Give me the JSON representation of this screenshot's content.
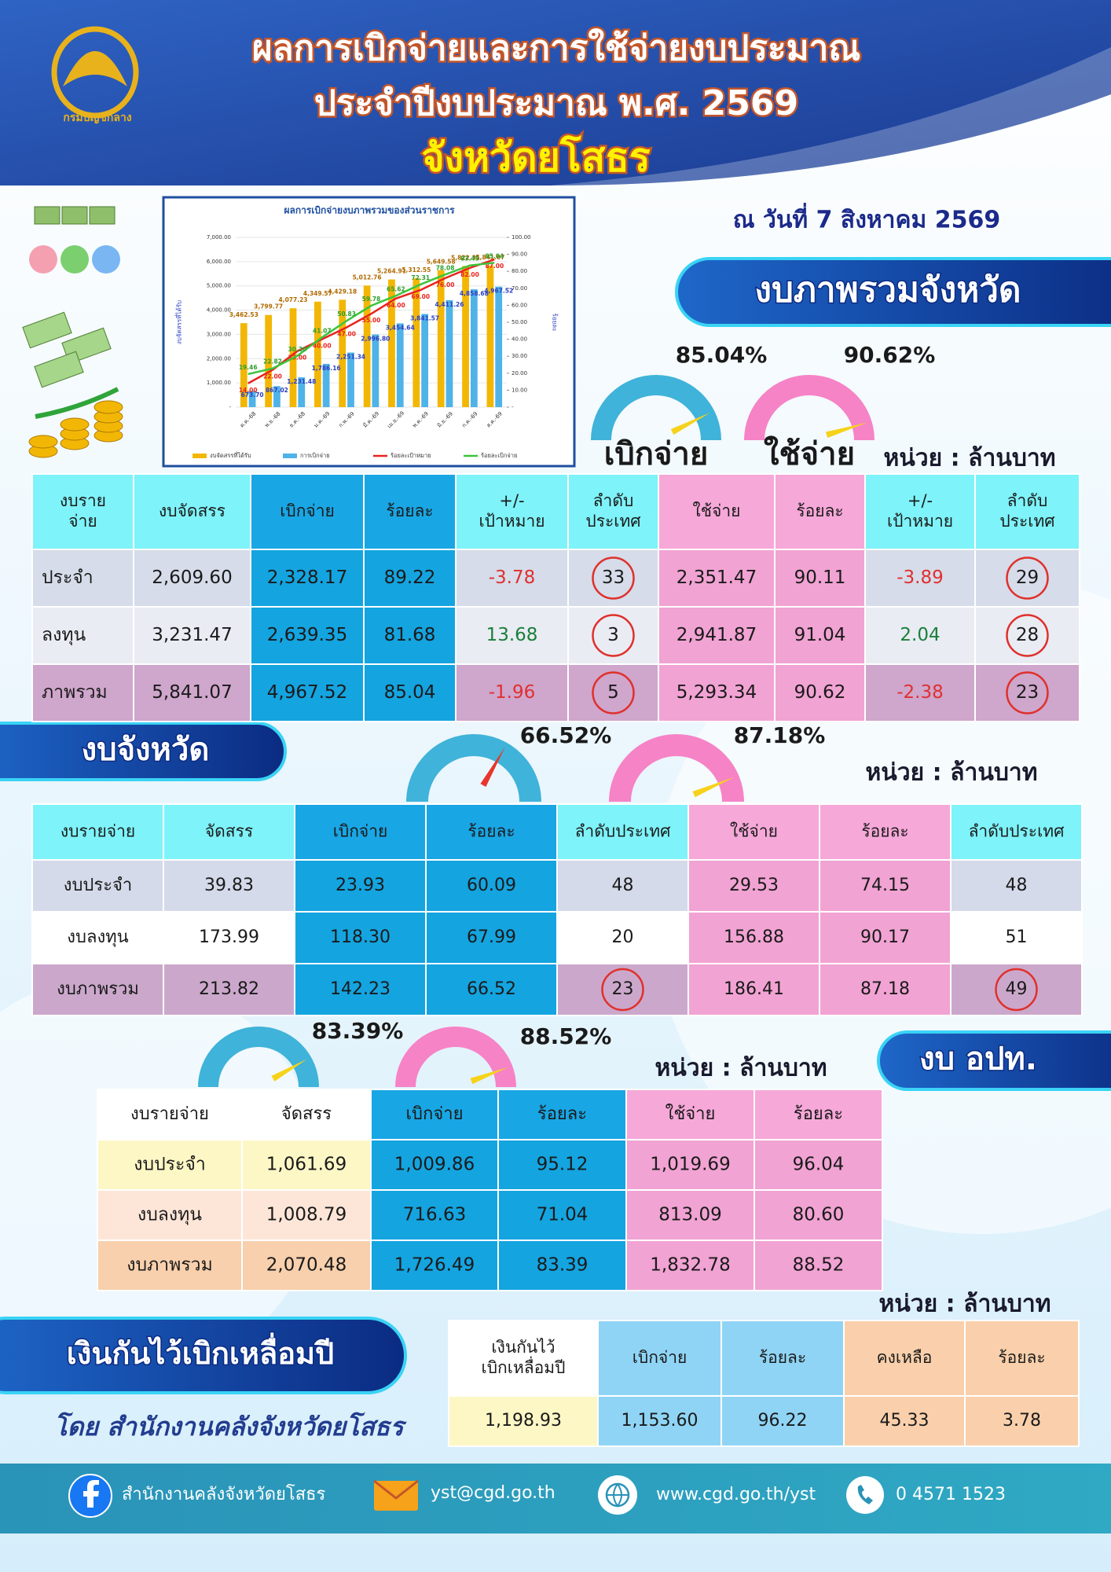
{
  "header": {
    "logo_text": "กรมบัญชีกลาง",
    "title_lines": [
      "ผลการเบิกจ่ายและการใช้จ่ายงบประมาณ",
      "ประจำปีงบประมาณ พ.ศ. 2569",
      "จังหวัดยโสธร"
    ],
    "date": "ณ วันที่ 7 สิงหาคม 2569"
  },
  "chart_data": {
    "type": "bar",
    "title": "ผลการเบิกจ่ายงบภาพรวมของส่วนราชการ",
    "y_label": "งบจัดสรรที่ได้รับ",
    "y2_label": "ร้อยละ",
    "categories": [
      "ต.ค.-68",
      "พ.ย.-68",
      "ธ.ค.-68",
      "ม.ค.-69",
      "ก.พ.-69",
      "มี.ค.-69",
      "เม.ย.-69",
      "พ.ค.-69",
      "มิ.ย.-69",
      "ก.ค.-69",
      "ส.ค.-69"
    ],
    "ylim": [
      0,
      7000
    ],
    "yticks": [
      {
        "value": 0,
        "label": "-"
      },
      {
        "value": 1000,
        "label": "1,000.00"
      },
      {
        "value": 2000,
        "label": "2,000.00"
      },
      {
        "value": 3000,
        "label": "3,000.00"
      },
      {
        "value": 4000,
        "label": "4,000.00"
      },
      {
        "value": 5000,
        "label": "5,000.00"
      },
      {
        "value": 6000,
        "label": "6,000.00"
      },
      {
        "value": 7000,
        "label": "7,000.00"
      }
    ],
    "y2lim": [
      0,
      100
    ],
    "y2ticks": [
      {
        "value": 0,
        "label": "-"
      },
      {
        "value": 10,
        "label": "10.00"
      },
      {
        "value": 20,
        "label": "20.00"
      },
      {
        "value": 30,
        "label": "30.00"
      },
      {
        "value": 40,
        "label": "40.00"
      },
      {
        "value": 50,
        "label": "50.00"
      },
      {
        "value": 60,
        "label": "60.00"
      },
      {
        "value": 70,
        "label": "70.00"
      },
      {
        "value": 80,
        "label": "80.00"
      },
      {
        "value": 90,
        "label": "90.00"
      },
      {
        "value": 100,
        "label": "100.00"
      }
    ],
    "series": [
      {
        "name": "งบจัดสรรที่ได้รับ",
        "type": "bar",
        "color": "#f2b705",
        "values": [
          3462.53,
          3799.77,
          4077.23,
          4349.57,
          4429.18,
          5012.76,
          5264.91,
          5312.55,
          5649.58,
          5822.31,
          5841.07
        ],
        "value_labels": [
          "3,462.53",
          "3,799.77",
          "4,077.23",
          "4,349.57",
          "4,429.18",
          "5,012.76",
          "5,264.91",
          "5,312.55",
          "5,649.58",
          "5,822.31",
          "5,841.07"
        ]
      },
      {
        "name": "การเบิกจ่าย",
        "type": "bar",
        "color": "#4fb3e8",
        "values": [
          673.7,
          867.02,
          1231.48,
          1786.16,
          2251.34,
          2996.8,
          3454.64,
          3841.57,
          4411.26,
          4858.68,
          4967.52
        ],
        "value_labels": [
          "673.70",
          "867.02",
          "1,231.48",
          "1,786.16",
          "2,251.34",
          "2,996.80",
          "3,454.64",
          "3,841.57",
          "4,411.26",
          "4,858.68",
          "4,967.52"
        ]
      },
      {
        "name": "ร้อยละเป้าหมาย",
        "type": "line",
        "axis": "y2",
        "color": "#e8231f",
        "values": [
          14.0,
          22.0,
          33.0,
          40.0,
          47.0,
          55.0,
          64.0,
          69.0,
          76.0,
          82.0,
          87.0
        ],
        "value_labels": [
          "14.00",
          "22.00",
          "33.00",
          "40.00",
          "47.00",
          "55.00",
          "64.00",
          "69.00",
          "76.00",
          "82.00",
          "87.00"
        ]
      },
      {
        "name": "ร้อยละเบิกจ่าย",
        "type": "line",
        "axis": "y2",
        "color": "#3cc43c",
        "values": [
          19.46,
          22.82,
          30.2,
          41.07,
          50.83,
          59.78,
          65.62,
          72.31,
          78.08,
          83.45,
          85.04
        ],
        "value_labels": [
          "19.46",
          "22.82",
          "30.20",
          "41.07",
          "50.83",
          "59.78",
          "65.62",
          "72.31",
          "78.08",
          "83.45",
          "85.04"
        ]
      }
    ]
  },
  "sections": [
    {
      "title": "งบภาพรวมจังหวัด",
      "unit": "หน่วย : ล้านบาท",
      "gauges": [
        {
          "value": 85.04,
          "value_label": "85.04%",
          "caption": "เบิกจ่าย"
        },
        {
          "value": 90.62,
          "value_label": "90.62%",
          "caption": "ใช้จ่าย"
        }
      ],
      "table": {
        "headers": [
          "งบราย\nจ่าย",
          "งบจัดสรร",
          "เบิกจ่าย",
          "ร้อยละ",
          "+/-\nเป้าหมาย",
          "ลำดับ\nประเทศ",
          "ใช้จ่าย",
          "ร้อยละ",
          "+/-\nเป้าหมาย",
          "ลำดับ\nประเทศ"
        ],
        "rows": [
          [
            "ประจำ",
            "2,609.60",
            "2,328.17",
            "89.22",
            "-3.78",
            "33",
            "2,351.47",
            "90.11",
            "-3.89",
            "29"
          ],
          [
            "ลงทุน",
            "3,231.47",
            "2,639.35",
            "81.68",
            "13.68",
            "3",
            "2,941.87",
            "91.04",
            "2.04",
            "28"
          ],
          [
            "ภาพรวม",
            "5,841.07",
            "4,967.52",
            "85.04",
            "-1.96",
            "5",
            "5,293.34",
            "90.62",
            "-2.38",
            "23"
          ]
        ],
        "circled": [
          [
            0,
            5
          ],
          [
            0,
            9
          ],
          [
            1,
            5
          ],
          [
            1,
            9
          ],
          [
            2,
            5
          ],
          [
            2,
            9
          ]
        ]
      }
    },
    {
      "title": "งบจังหวัด",
      "unit": "หน่วย : ล้านบาท",
      "gauges": [
        {
          "value": 66.52,
          "value_label": "66.52%"
        },
        {
          "value": 87.18,
          "value_label": "87.18%"
        }
      ],
      "table": {
        "headers": [
          "งบรายจ่าย",
          "จัดสรร",
          "เบิกจ่าย",
          "ร้อยละ",
          "ลำดับประเทศ",
          "ใช้จ่าย",
          "ร้อยละ",
          "ลำดับประเทศ"
        ],
        "rows": [
          [
            "งบประจำ",
            "39.83",
            "23.93",
            "60.09",
            "48",
            "29.53",
            "74.15",
            "48"
          ],
          [
            "งบลงทุน",
            "173.99",
            "118.30",
            "67.99",
            "20",
            "156.88",
            "90.17",
            "51"
          ],
          [
            "งบภาพรวม",
            "213.82",
            "142.23",
            "66.52",
            "23",
            "186.41",
            "87.18",
            "49"
          ]
        ],
        "circled": [
          [
            2,
            4
          ],
          [
            2,
            7
          ]
        ]
      }
    },
    {
      "title": "งบ อปท.",
      "unit": "หน่วย : ล้านบาท",
      "gauges": [
        {
          "value": 83.39,
          "value_label": "83.39%"
        },
        {
          "value": 88.52,
          "value_label": "88.52%"
        }
      ],
      "table": {
        "headers": [
          "งบรายจ่าย",
          "จัดสรร",
          "เบิกจ่าย",
          "ร้อยละ",
          "ใช้จ่าย",
          "ร้อยละ"
        ],
        "rows": [
          [
            "งบประจำ",
            "1,061.69",
            "1,009.86",
            "95.12",
            "1,019.69",
            "96.04"
          ],
          [
            "งบลงทุน",
            "1,008.79",
            "716.63",
            "71.04",
            "813.09",
            "80.60"
          ],
          [
            "งบภาพรวม",
            "2,070.48",
            "1,726.49",
            "83.39",
            "1,832.78",
            "88.52"
          ]
        ]
      }
    },
    {
      "title": "เงินกันไว้เบิกเหลื่อมปี",
      "unit": "หน่วย : ล้านบาท",
      "note": "โดย สำนักงานคลังจังหวัดยโสธร",
      "table": {
        "headers": [
          "เงินกันไว้\nเบิกเหลื่อมปี",
          "เบิกจ่าย",
          "ร้อยละ",
          "คงเหลือ",
          "ร้อยละ"
        ],
        "rows": [
          [
            "1,198.93",
            "1,153.60",
            "96.22",
            "45.33",
            "3.78"
          ]
        ]
      }
    }
  ],
  "footer": {
    "facebook": "สำนักงานคลังจังหวัดยโสธร",
    "email": "yst@cgd.go.th",
    "website": "www.cgd.go.th/yst",
    "phone": "0 4571 1523"
  }
}
